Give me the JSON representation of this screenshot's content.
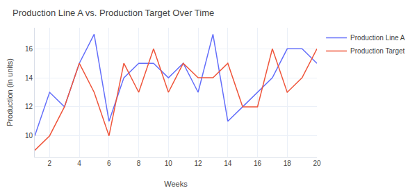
{
  "chart_data": {
    "type": "line",
    "title": "Production Line A vs. Production Target Over Time",
    "x_label": "Weeks",
    "y_label": "Production (in units)",
    "x": [
      1,
      2,
      3,
      4,
      5,
      6,
      7,
      8,
      9,
      10,
      11,
      12,
      13,
      14,
      15,
      16,
      17,
      18,
      19,
      20
    ],
    "series": [
      {
        "name": "Production Line A",
        "color": "#636efa",
        "values": [
          10,
          13,
          12,
          15,
          17,
          11,
          14,
          15,
          15,
          14,
          15,
          13,
          17,
          11,
          12,
          13,
          14,
          16,
          16,
          15
        ]
      },
      {
        "name": "Production Target",
        "color": "#ef553b",
        "values": [
          9,
          10,
          12,
          15,
          13,
          10,
          15,
          13,
          16,
          13,
          15,
          14,
          14,
          15,
          12,
          12,
          16,
          13,
          14,
          16
        ]
      }
    ],
    "xlim": [
      1,
      20
    ],
    "xticks": [
      2,
      4,
      6,
      8,
      10,
      12,
      14,
      16,
      18,
      20
    ],
    "ylim": [
      8.55,
      17.45
    ],
    "yticks": [
      10,
      12,
      14,
      16
    ],
    "grid": true,
    "legend": "top right"
  }
}
